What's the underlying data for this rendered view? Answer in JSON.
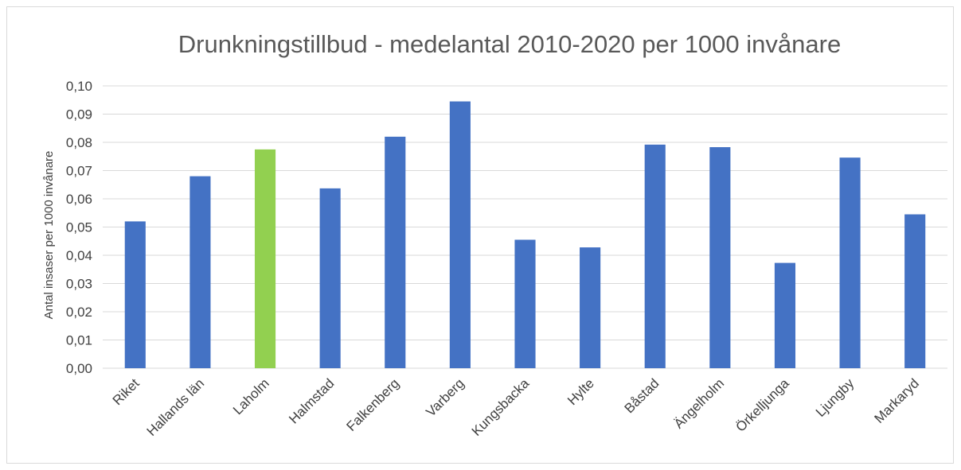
{
  "chart_data": {
    "type": "bar",
    "title": "Drunkningstillbud - medelantal 2010-2020 per 1000 invånare",
    "xlabel": "",
    "ylabel": "Antal insaser per 1000 invånare",
    "categories": [
      "Riket",
      "Hallands län",
      "Laholm",
      "Halmstad",
      "Falkenberg",
      "Varberg",
      "Kungsbacka",
      "Hylte",
      "Båstad",
      "Ängelholm",
      "Örkelljunga",
      "Ljungby",
      "Markaryd"
    ],
    "values": [
      0.052,
      0.068,
      0.0775,
      0.0637,
      0.082,
      0.0945,
      0.0455,
      0.0428,
      0.0792,
      0.0783,
      0.0373,
      0.0746,
      0.0545
    ],
    "highlight": "Laholm",
    "ylim": [
      0,
      0.1
    ],
    "yticks": [
      "0,00",
      "0,01",
      "0,02",
      "0,03",
      "0,04",
      "0,05",
      "0,06",
      "0,07",
      "0,08",
      "0,09",
      "0,10"
    ],
    "grid": true,
    "legend": "none",
    "colors": {
      "bar": "#4472c4",
      "highlight": "#92d050"
    }
  }
}
